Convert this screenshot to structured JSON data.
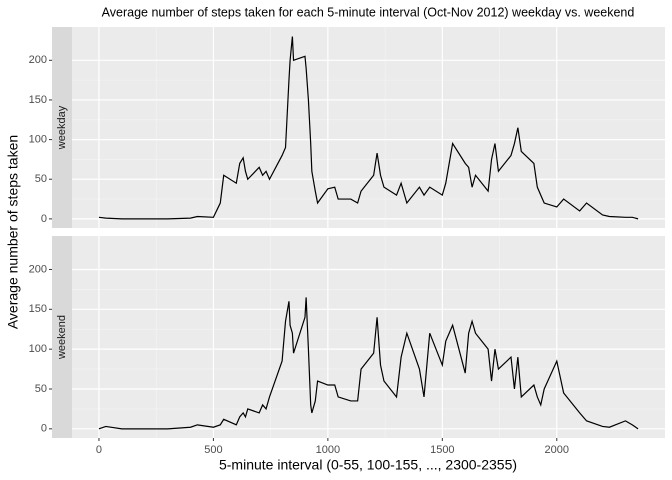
{
  "chart_data": {
    "type": "line",
    "title": "Average number of steps taken for each 5-minute interval (Oct-Nov 2012) weekday vs. weekend",
    "xlabel": "5-minute interval (0-55, 100-155, ..., 2300-2355)",
    "ylabel": "Average number of steps taken",
    "x": [
      0,
      30,
      100,
      200,
      300,
      400,
      430,
      500,
      530,
      545,
      600,
      615,
      630,
      640,
      650,
      700,
      715,
      730,
      745,
      800,
      815,
      830,
      835,
      845,
      850,
      900,
      905,
      915,
      925,
      930,
      945,
      955,
      1000,
      1030,
      1045,
      1100,
      1130,
      1145,
      1200,
      1215,
      1230,
      1245,
      1300,
      1320,
      1345,
      1400,
      1420,
      1445,
      1500,
      1515,
      1545,
      1600,
      1615,
      1630,
      1645,
      1700,
      1715,
      1730,
      1745,
      1800,
      1815,
      1830,
      1845,
      1900,
      1915,
      1930,
      1945,
      2000,
      2030,
      2100,
      2130,
      2200,
      2230,
      2300,
      2330,
      2355
    ],
    "series": [
      {
        "name": "weekday",
        "color": "#000000",
        "values": [
          2,
          1,
          0,
          0,
          0,
          1,
          3,
          2,
          20,
          55,
          45,
          70,
          77,
          60,
          50,
          65,
          55,
          60,
          50,
          80,
          90,
          175,
          200,
          230,
          200,
          205,
          190,
          150,
          95,
          60,
          35,
          20,
          38,
          40,
          25,
          25,
          20,
          35,
          55,
          83,
          55,
          40,
          30,
          45,
          20,
          40,
          30,
          40,
          30,
          45,
          95,
          70,
          65,
          40,
          55,
          35,
          75,
          95,
          60,
          80,
          95,
          115,
          85,
          70,
          40,
          30,
          20,
          15,
          25,
          10,
          20,
          5,
          3,
          2,
          2,
          0
        ]
      },
      {
        "name": "weekend",
        "color": "#000000",
        "values": [
          0,
          3,
          0,
          0,
          0,
          2,
          5,
          2,
          5,
          12,
          5,
          15,
          20,
          15,
          25,
          20,
          30,
          25,
          40,
          85,
          135,
          160,
          130,
          120,
          95,
          140,
          165,
          100,
          30,
          20,
          35,
          60,
          55,
          55,
          40,
          35,
          35,
          75,
          95,
          140,
          80,
          60,
          40,
          90,
          120,
          75,
          40,
          120,
          80,
          110,
          130,
          70,
          120,
          135,
          120,
          100,
          60,
          100,
          75,
          90,
          50,
          90,
          40,
          55,
          40,
          30,
          50,
          85,
          45,
          20,
          10,
          3,
          2,
          10,
          5,
          0
        ]
      }
    ],
    "xlim": [
      -117.75,
      2472.75
    ],
    "xticks": [
      0,
      500,
      1000,
      1500,
      2000
    ],
    "ylim": [
      -11.5,
      242
    ],
    "yticks": [
      0,
      50,
      100,
      150,
      200
    ],
    "grid": true
  }
}
